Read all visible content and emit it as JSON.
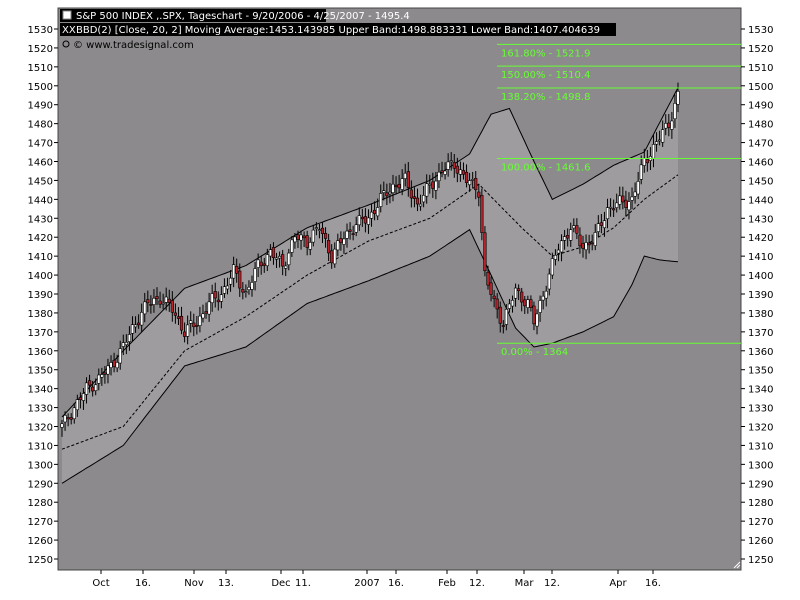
{
  "header": {
    "line1": "S&P 500 INDEX ,.SPX, Tageschart - 9/20/2006 - 4/25/2007 - 1495.4",
    "line2": "BBD(2) [Close, 20, 2] Moving Average:1453.143985 Upper Band:1498.883331 Lower Band:1407.404639",
    "line3": "© www.tradesignal.com",
    "line2_marker": "XX"
  },
  "colors": {
    "plot_bg": "#8c8a8c",
    "band_fill": "#9e9c9e",
    "fib_color": "#66ff33",
    "up_candle": "#ffffff",
    "down_candle": "#b8222a",
    "header_bg": "#000000"
  },
  "chart_data": {
    "type": "candlestick",
    "title": "S&P 500 INDEX ,.SPX, Tageschart - 9/20/2006 - 4/25/2007 - 1495.4",
    "ylim": [
      1245,
      1535
    ],
    "y_ticks": [
      1250,
      1260,
      1270,
      1280,
      1290,
      1300,
      1310,
      1320,
      1330,
      1340,
      1350,
      1360,
      1370,
      1380,
      1390,
      1400,
      1410,
      1420,
      1430,
      1440,
      1450,
      1460,
      1470,
      1480,
      1490,
      1500,
      1510,
      1520,
      1530
    ],
    "x_labels": [
      "Oct",
      "16.",
      "Nov",
      "13.",
      "Dec",
      "11.",
      "2007",
      "16.",
      "Feb",
      "12.",
      "Mar",
      "12.",
      "Apr",
      "16."
    ],
    "fib_levels": [
      {
        "label": "161.80% - 1521.9",
        "value": 1521.9
      },
      {
        "label": "150.00% - 1510.4",
        "value": 1510.4
      },
      {
        "label": "138.20% - 1498.8",
        "value": 1498.8
      },
      {
        "label": "100.00% - 1461.6",
        "value": 1461.6
      },
      {
        "label": "0.00% - 1364",
        "value": 1364
      }
    ],
    "indicator": {
      "moving_average": 1453.143985,
      "upper_band": 1498.883331,
      "lower_band": 1407.404639
    },
    "close_path": [
      [
        0,
        1320
      ],
      [
        4,
        1330
      ],
      [
        8,
        1340
      ],
      [
        12,
        1345
      ],
      [
        16,
        1352
      ],
      [
        20,
        1362
      ],
      [
        24,
        1375
      ],
      [
        28,
        1385
      ],
      [
        32,
        1388
      ],
      [
        36,
        1382
      ],
      [
        40,
        1370
      ],
      [
        44,
        1375
      ],
      [
        48,
        1385
      ],
      [
        52,
        1390
      ],
      [
        56,
        1402
      ],
      [
        60,
        1390
      ],
      [
        64,
        1405
      ],
      [
        68,
        1412
      ],
      [
        72,
        1405
      ],
      [
        76,
        1420
      ],
      [
        80,
        1418
      ],
      [
        84,
        1425
      ],
      [
        88,
        1410
      ],
      [
        92,
        1420
      ],
      [
        96,
        1427
      ],
      [
        100,
        1430
      ],
      [
        104,
        1440
      ],
      [
        108,
        1447
      ],
      [
        112,
        1450
      ],
      [
        116,
        1437
      ],
      [
        120,
        1447
      ],
      [
        124,
        1455
      ],
      [
        128,
        1459
      ],
      [
        132,
        1450
      ],
      [
        136,
        1445
      ],
      [
        138,
        1400
      ],
      [
        141,
        1385
      ],
      [
        144,
        1375
      ],
      [
        148,
        1392
      ],
      [
        152,
        1385
      ],
      [
        154,
        1375
      ],
      [
        156,
        1385
      ],
      [
        158,
        1395
      ],
      [
        162,
        1415
      ],
      [
        166,
        1425
      ],
      [
        170,
        1415
      ],
      [
        174,
        1420
      ],
      [
        178,
        1435
      ],
      [
        182,
        1438
      ],
      [
        186,
        1440
      ],
      [
        190,
        1460
      ],
      [
        194,
        1470
      ],
      [
        198,
        1480
      ],
      [
        201,
        1495
      ]
    ],
    "ma_path": [
      [
        0,
        1308
      ],
      [
        20,
        1320
      ],
      [
        40,
        1360
      ],
      [
        60,
        1378
      ],
      [
        80,
        1400
      ],
      [
        100,
        1418
      ],
      [
        120,
        1430
      ],
      [
        136,
        1448
      ],
      [
        150,
        1425
      ],
      [
        160,
        1410
      ],
      [
        170,
        1415
      ],
      [
        180,
        1425
      ],
      [
        190,
        1440
      ],
      [
        201,
        1453
      ]
    ],
    "upper_path": [
      [
        0,
        1325
      ],
      [
        20,
        1360
      ],
      [
        40,
        1393
      ],
      [
        60,
        1405
      ],
      [
        80,
        1425
      ],
      [
        100,
        1437
      ],
      [
        120,
        1450
      ],
      [
        133,
        1464
      ],
      [
        140,
        1485
      ],
      [
        146,
        1488
      ],
      [
        154,
        1460
      ],
      [
        160,
        1440
      ],
      [
        170,
        1448
      ],
      [
        180,
        1458
      ],
      [
        190,
        1465
      ],
      [
        201,
        1499
      ]
    ],
    "lower_path": [
      [
        0,
        1290
      ],
      [
        20,
        1310
      ],
      [
        40,
        1352
      ],
      [
        60,
        1362
      ],
      [
        80,
        1385
      ],
      [
        100,
        1397
      ],
      [
        120,
        1410
      ],
      [
        133,
        1424
      ],
      [
        140,
        1400
      ],
      [
        148,
        1372
      ],
      [
        154,
        1362
      ],
      [
        160,
        1364
      ],
      [
        170,
        1370
      ],
      [
        180,
        1378
      ],
      [
        186,
        1395
      ],
      [
        190,
        1410
      ],
      [
        195,
        1408
      ],
      [
        201,
        1407
      ]
    ]
  }
}
